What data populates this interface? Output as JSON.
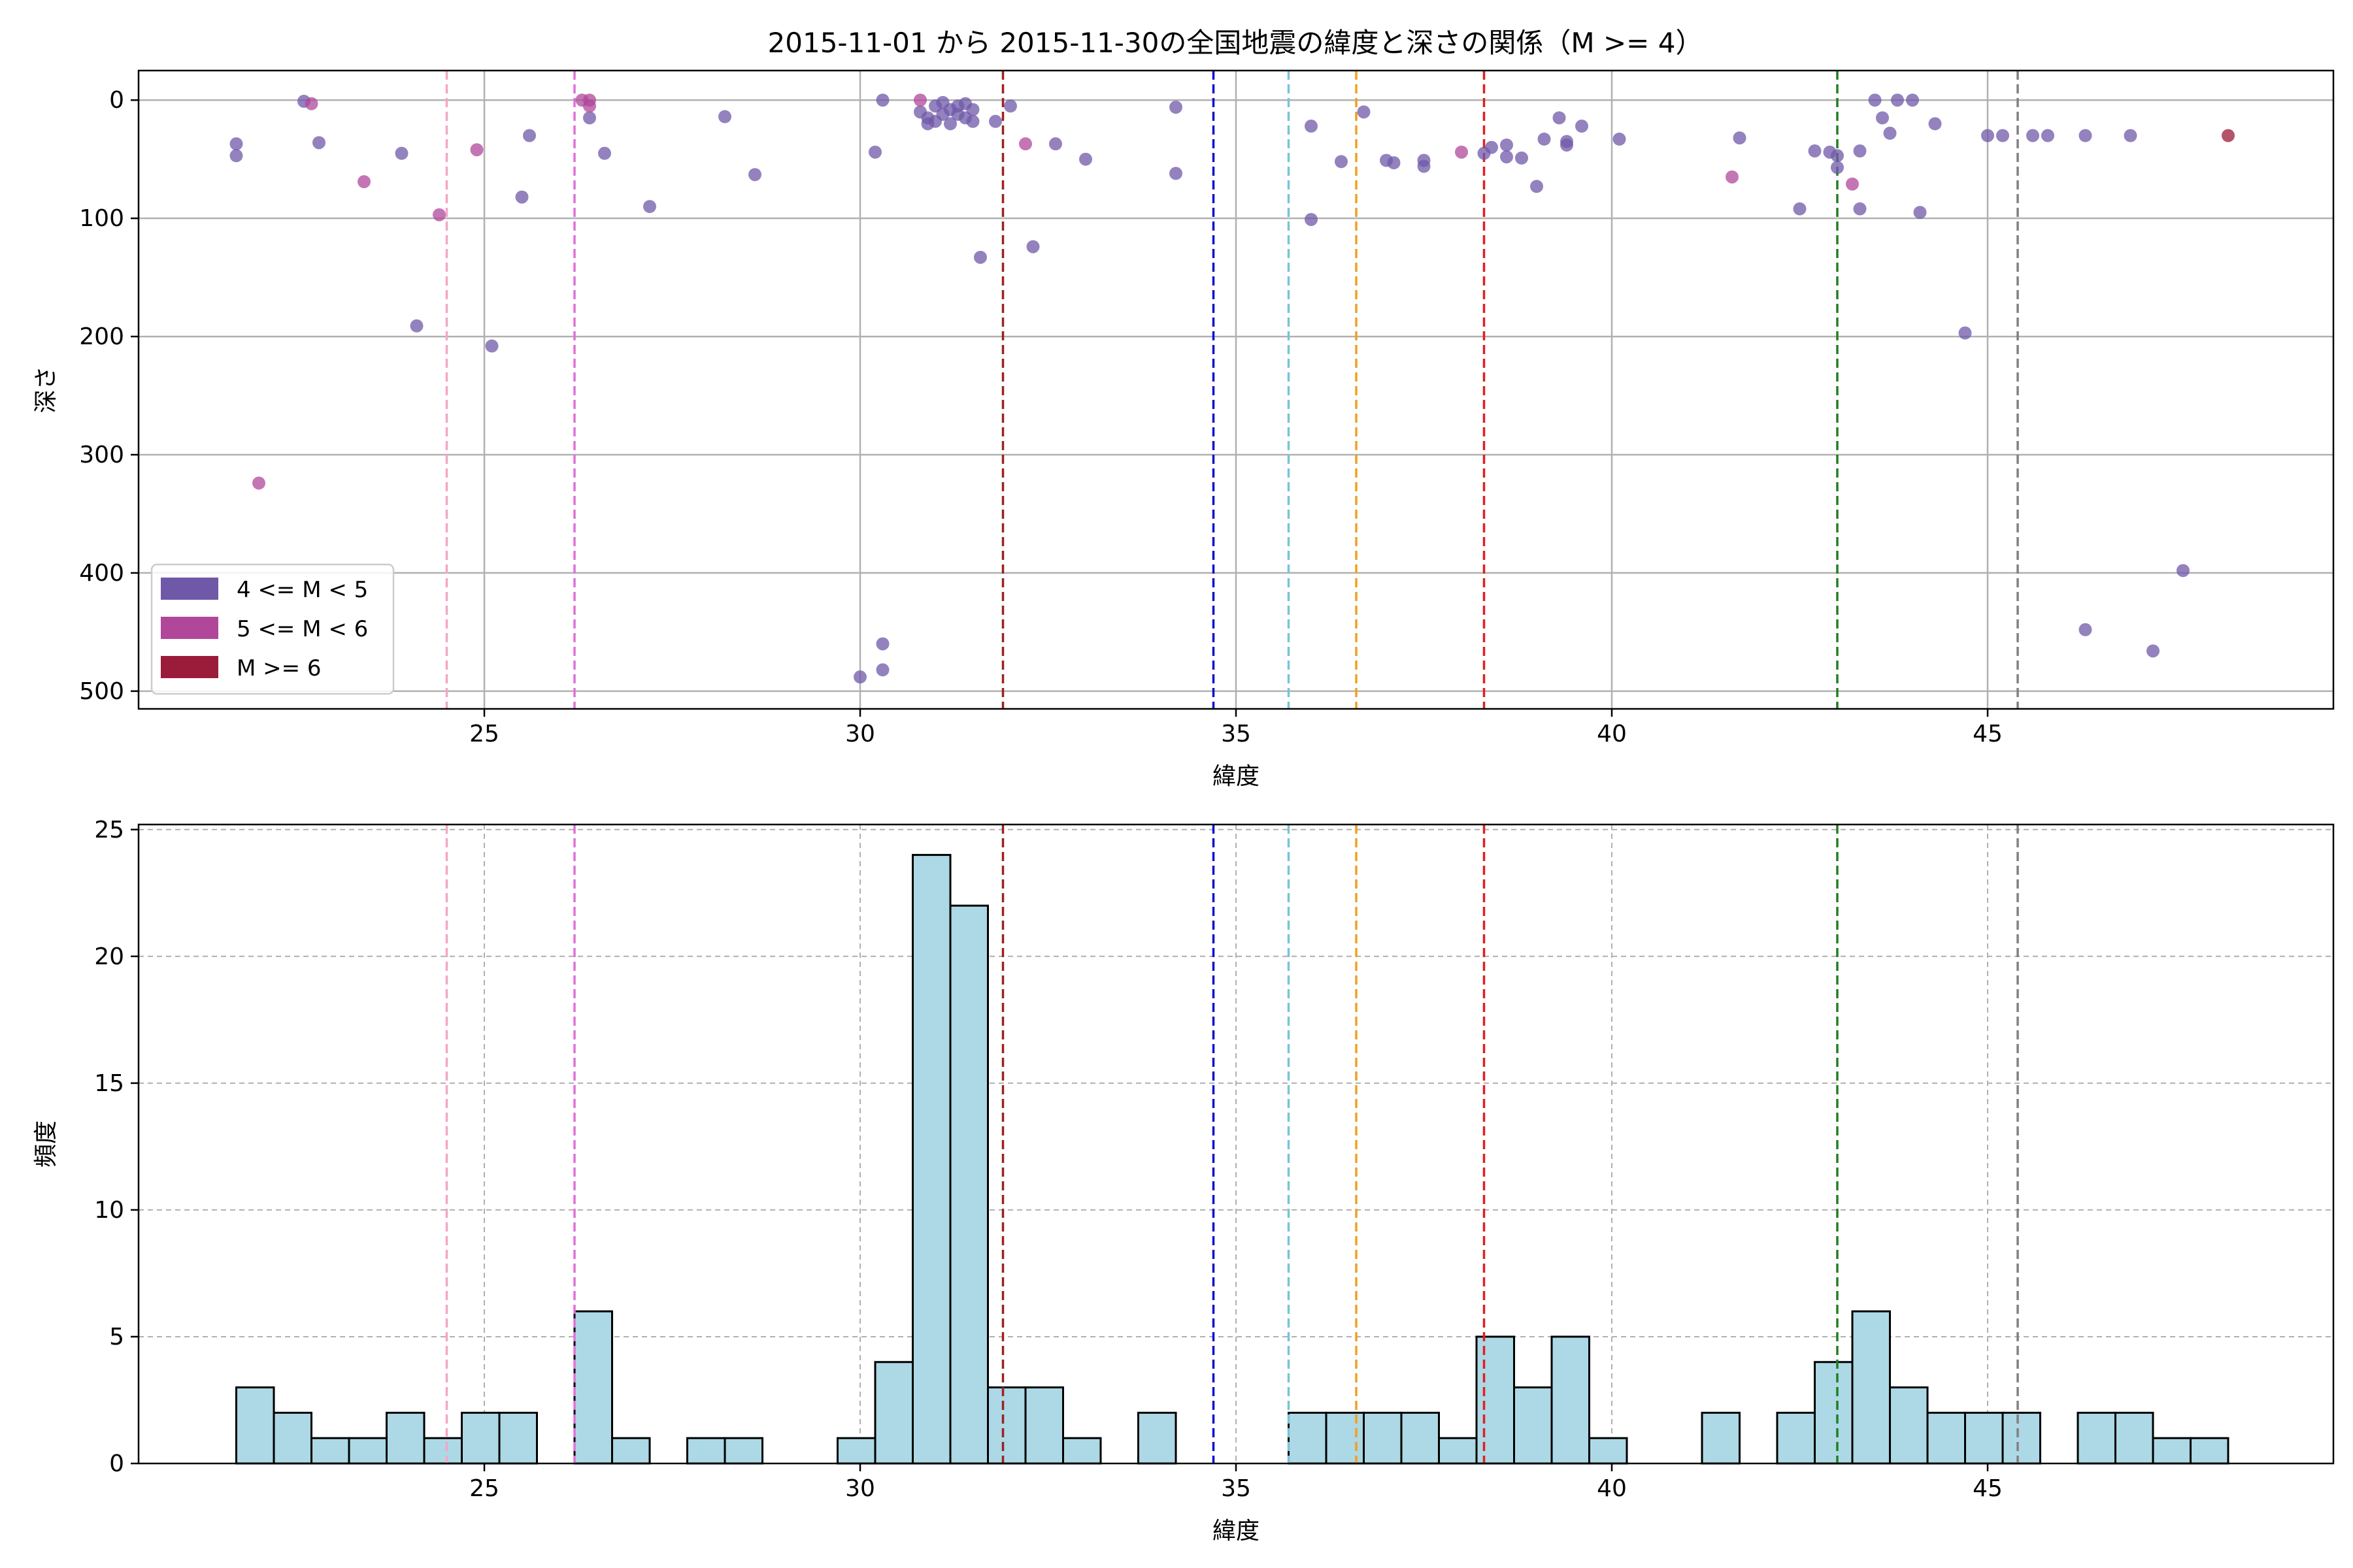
{
  "chart_data": [
    {
      "type": "scatter",
      "title": "2015-11-01 から 2015-11-30の全国地震の緯度と深さの関係（M >= 4）",
      "xlabel": "緯度",
      "ylabel": "深さ",
      "xlim": [
        20.4,
        49.6
      ],
      "ylim": [
        515,
        -25
      ],
      "y_inverted": true,
      "xticks": [
        25,
        30,
        35,
        40,
        45
      ],
      "yticks": [
        0,
        100,
        200,
        300,
        400,
        500
      ],
      "grid": true,
      "legend_position": "lower-left",
      "reference_lines": [
        {
          "x": 24.5,
          "color": "#f4a6c8"
        },
        {
          "x": 26.2,
          "color": "#e070d8"
        },
        {
          "x": 31.9,
          "color": "#9b2222"
        },
        {
          "x": 34.7,
          "color": "#1010d0"
        },
        {
          "x": 35.7,
          "color": "#78c4d8"
        },
        {
          "x": 36.6,
          "color": "#f0a020"
        },
        {
          "x": 38.3,
          "color": "#e02020"
        },
        {
          "x": 43.0,
          "color": "#208020"
        },
        {
          "x": 45.4,
          "color": "#808080"
        }
      ],
      "series": [
        {
          "name": "4 <= M < 5",
          "color": "#6f58a8",
          "points": [
            [
              21.7,
              37
            ],
            [
              21.7,
              47
            ],
            [
              22.6,
              1
            ],
            [
              22.8,
              36
            ],
            [
              23.9,
              45
            ],
            [
              24.1,
              191
            ],
            [
              25.1,
              208
            ],
            [
              25.5,
              82
            ],
            [
              25.6,
              30
            ],
            [
              26.4,
              15
            ],
            [
              26.6,
              45
            ],
            [
              27.2,
              90
            ],
            [
              28.2,
              14
            ],
            [
              28.6,
              63
            ],
            [
              30.0,
              488
            ],
            [
              30.2,
              44
            ],
            [
              30.3,
              0
            ],
            [
              30.3,
              460
            ],
            [
              30.3,
              482
            ],
            [
              30.8,
              10
            ],
            [
              30.9,
              15
            ],
            [
              30.9,
              20
            ],
            [
              31.0,
              5
            ],
            [
              31.0,
              18
            ],
            [
              31.1,
              12
            ],
            [
              31.1,
              2
            ],
            [
              31.2,
              8
            ],
            [
              31.2,
              20
            ],
            [
              31.3,
              12
            ],
            [
              31.3,
              5
            ],
            [
              31.4,
              15
            ],
            [
              31.4,
              3
            ],
            [
              31.5,
              8
            ],
            [
              31.5,
              18
            ],
            [
              31.6,
              133
            ],
            [
              31.8,
              18
            ],
            [
              32.0,
              5
            ],
            [
              32.3,
              124
            ],
            [
              32.6,
              37
            ],
            [
              33.0,
              50
            ],
            [
              34.2,
              6
            ],
            [
              34.2,
              62
            ],
            [
              36.0,
              22
            ],
            [
              36.0,
              101
            ],
            [
              36.4,
              52
            ],
            [
              36.7,
              10
            ],
            [
              37.0,
              51
            ],
            [
              37.1,
              53
            ],
            [
              37.5,
              51
            ],
            [
              37.5,
              56
            ],
            [
              38.3,
              45
            ],
            [
              38.4,
              40
            ],
            [
              38.6,
              38
            ],
            [
              38.6,
              48
            ],
            [
              38.8,
              49
            ],
            [
              39.0,
              73
            ],
            [
              39.1,
              33
            ],
            [
              39.3,
              15
            ],
            [
              39.4,
              35
            ],
            [
              39.4,
              38
            ],
            [
              39.6,
              22
            ],
            [
              40.1,
              33
            ],
            [
              41.7,
              32
            ],
            [
              42.5,
              92
            ],
            [
              42.7,
              43
            ],
            [
              42.9,
              44
            ],
            [
              43.0,
              47
            ],
            [
              43.0,
              57
            ],
            [
              43.3,
              43
            ],
            [
              43.3,
              92
            ],
            [
              43.5,
              0
            ],
            [
              43.6,
              15
            ],
            [
              43.7,
              28
            ],
            [
              43.8,
              0
            ],
            [
              44.0,
              0
            ],
            [
              44.1,
              95
            ],
            [
              44.3,
              20
            ],
            [
              44.7,
              197
            ],
            [
              45.0,
              30
            ],
            [
              45.2,
              30
            ],
            [
              45.6,
              30
            ],
            [
              45.8,
              30
            ],
            [
              46.3,
              30
            ],
            [
              46.3,
              448
            ],
            [
              46.9,
              30
            ],
            [
              47.2,
              466
            ],
            [
              47.6,
              398
            ]
          ]
        },
        {
          "name": "5 <= M < 6",
          "color": "#b0479a",
          "points": [
            [
              22.0,
              324
            ],
            [
              22.7,
              3
            ],
            [
              23.4,
              69
            ],
            [
              24.4,
              97
            ],
            [
              24.9,
              42
            ],
            [
              26.3,
              0
            ],
            [
              26.4,
              5
            ],
            [
              26.4,
              0
            ],
            [
              30.8,
              0
            ],
            [
              32.2,
              37
            ],
            [
              38.0,
              44
            ],
            [
              41.6,
              65
            ],
            [
              43.2,
              71
            ]
          ]
        },
        {
          "name": "M >= 6",
          "color": "#9b1b3a",
          "points": [
            [
              48.2,
              30
            ]
          ]
        }
      ]
    },
    {
      "type": "bar",
      "xlabel": "緯度",
      "ylabel": "頻度",
      "xlim": [
        20.4,
        49.6
      ],
      "ylim": [
        0,
        25.2
      ],
      "xticks": [
        25,
        30,
        35,
        40,
        45
      ],
      "yticks": [
        0,
        5,
        10,
        15,
        20,
        25
      ],
      "grid": true,
      "bar_color": "#add8e6",
      "bin_width": 0.5,
      "bins_start": [
        21.7,
        22.2,
        22.7,
        23.2,
        23.7,
        24.2,
        24.7,
        25.2,
        26.2,
        26.7,
        27.7,
        28.2,
        29.7,
        30.2,
        30.7,
        31.2,
        31.7,
        32.2,
        32.7,
        33.7,
        35.7,
        36.2,
        36.7,
        37.2,
        37.7,
        38.2,
        38.7,
        39.2,
        39.7,
        41.2,
        42.2,
        42.7,
        43.2,
        43.7,
        44.2,
        44.7,
        45.2,
        46.2,
        46.7,
        47.2,
        47.7
      ],
      "values": [
        3,
        2,
        1,
        1,
        2,
        1,
        2,
        2,
        6,
        1,
        1,
        1,
        1,
        4,
        24,
        22,
        3,
        3,
        1,
        2,
        2,
        2,
        2,
        2,
        1,
        5,
        3,
        5,
        1,
        2,
        2,
        4,
        6,
        3,
        2,
        2,
        2,
        2,
        2,
        1,
        1
      ],
      "reference_lines": [
        {
          "x": 24.5,
          "color": "#f4a6c8"
        },
        {
          "x": 26.2,
          "color": "#e070d8"
        },
        {
          "x": 31.9,
          "color": "#9b2222"
        },
        {
          "x": 34.7,
          "color": "#1010d0"
        },
        {
          "x": 35.7,
          "color": "#78c4d8"
        },
        {
          "x": 36.6,
          "color": "#f0a020"
        },
        {
          "x": 38.3,
          "color": "#e02020"
        },
        {
          "x": 43.0,
          "color": "#208020"
        },
        {
          "x": 45.4,
          "color": "#808080"
        }
      ]
    }
  ]
}
